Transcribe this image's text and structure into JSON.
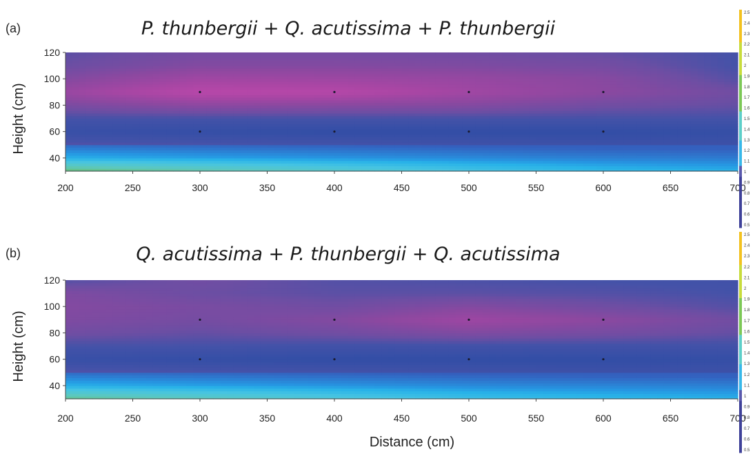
{
  "chart_data": [
    {
      "type": "heatmap",
      "panel_label": "(a)",
      "title": "P. thunbergii + Q. acutissima + P. thunbergii",
      "xlabel": "",
      "ylabel": "Height (cm)",
      "xlim": [
        200,
        700
      ],
      "ylim": [
        30,
        120
      ],
      "x_ticks": [
        200,
        250,
        300,
        350,
        400,
        450,
        500,
        550,
        600,
        650,
        700
      ],
      "y_ticks": [
        40,
        60,
        80,
        100,
        120
      ],
      "sample_x": [
        300,
        400,
        500,
        600
      ],
      "sample_y": [
        60,
        90
      ],
      "x": [
        200,
        300,
        400,
        500,
        600,
        700
      ],
      "y": [
        30,
        40,
        50,
        60,
        70,
        80,
        90,
        100,
        110,
        120
      ],
      "z": [
        [
          1.45,
          1.35,
          1.25,
          1.15,
          1.08,
          1.05
        ],
        [
          1.05,
          1.02,
          1.0,
          0.98,
          0.96,
          0.95
        ],
        [
          0.92,
          0.91,
          0.9,
          0.89,
          0.88,
          0.88
        ],
        [
          0.86,
          0.85,
          0.84,
          0.84,
          0.84,
          0.85
        ],
        [
          0.9,
          0.9,
          0.9,
          0.9,
          0.9,
          0.9
        ],
        [
          0.98,
          1.02,
          1.01,
          1.0,
          0.96,
          0.94
        ],
        [
          1.06,
          1.16,
          1.15,
          1.08,
          1.02,
          0.96
        ],
        [
          1.0,
          1.08,
          1.07,
          1.05,
          1.01,
          0.92
        ],
        [
          0.95,
          1.0,
          1.0,
          0.99,
          0.97,
          0.9
        ],
        [
          0.93,
          0.97,
          0.97,
          0.96,
          0.94,
          0.9
        ]
      ]
    },
    {
      "type": "heatmap",
      "panel_label": "(b)",
      "title": "Q. acutissima + P. thunbergii + Q. acutissima",
      "xlabel": "Distance (cm)",
      "ylabel": "Height (cm)",
      "xlim": [
        200,
        700
      ],
      "ylim": [
        30,
        120
      ],
      "x_ticks": [
        200,
        250,
        300,
        350,
        400,
        450,
        500,
        550,
        600,
        650,
        700
      ],
      "y_ticks": [
        40,
        60,
        80,
        100,
        120
      ],
      "sample_x": [
        300,
        400,
        500,
        600
      ],
      "sample_y": [
        60,
        90
      ],
      "x": [
        200,
        300,
        400,
        500,
        600,
        700
      ],
      "y": [
        30,
        40,
        50,
        60,
        70,
        80,
        90,
        100,
        110,
        120
      ],
      "z": [
        [
          1.4,
          1.3,
          1.2,
          1.12,
          1.08,
          1.05
        ],
        [
          1.05,
          1.02,
          1.0,
          0.98,
          0.97,
          0.96
        ],
        [
          0.92,
          0.91,
          0.9,
          0.89,
          0.88,
          0.88
        ],
        [
          0.86,
          0.85,
          0.84,
          0.84,
          0.84,
          0.85
        ],
        [
          0.9,
          0.9,
          0.89,
          0.89,
          0.89,
          0.89
        ],
        [
          0.96,
          0.94,
          0.96,
          0.99,
          0.97,
          0.94
        ],
        [
          0.99,
          0.97,
          1.0,
          1.07,
          1.02,
          0.96
        ],
        [
          1.0,
          0.98,
          0.96,
          1.0,
          0.96,
          0.92
        ],
        [
          0.99,
          0.95,
          0.93,
          0.93,
          0.92,
          0.9
        ],
        [
          0.92,
          0.96,
          0.92,
          0.91,
          0.9,
          0.89
        ]
      ]
    }
  ],
  "colorbar": {
    "ticks": [
      "2.5",
      "2.4",
      "2.3",
      "2.2",
      "2.1",
      "2",
      "1.9",
      "1.8",
      "1.7",
      "1.6",
      "1.5",
      "1.4",
      "1.3",
      "1.2",
      "1.1",
      "1",
      "0.9",
      "0.8",
      "0.7",
      "0.6",
      "0.5"
    ],
    "colors": {
      "0.5": "#3e3e98",
      "0.85": "#3552a6",
      "0.95": "#6c4ea3",
      "1.05": "#8c48a0",
      "1.15": "#b446a6",
      "1.0": "#26b2e8",
      "1.2": "#40c7ea",
      "1.3": "#5fd0d8",
      "1.5": "#6ac25a",
      "2.0": "#b8d839",
      "2.5": "#f5b81f"
    }
  }
}
